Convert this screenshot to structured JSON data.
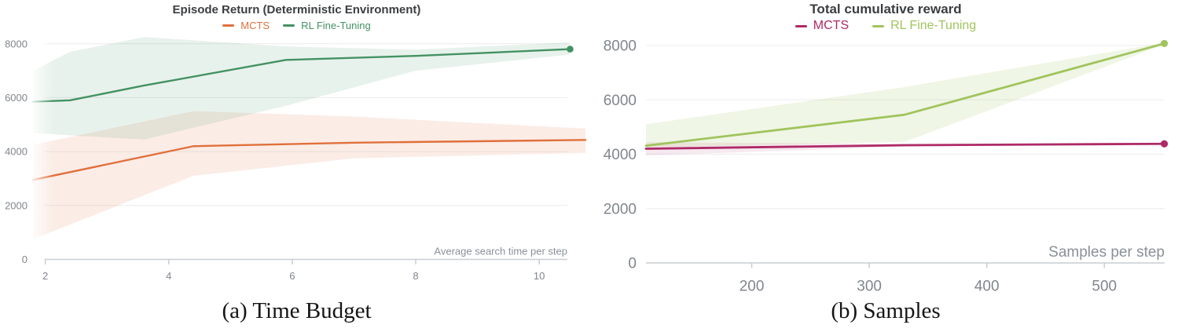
{
  "captions": [
    "(a) Time Budget",
    "(b) Samples"
  ],
  "chart_data": [
    {
      "type": "line",
      "title": "Episode Return (Deterministic Environment)",
      "xlabel": "Average search time per step",
      "ylabel": "",
      "xlim": [
        1.75,
        10.8
      ],
      "ylim": [
        0,
        8400
      ],
      "x_ticks": [
        2,
        4,
        6,
        8,
        10
      ],
      "y_ticks": [
        0,
        2000,
        4000,
        6000,
        8000
      ],
      "grid": true,
      "legend_position": "top-center",
      "edge_fade": true,
      "series": [
        {
          "name": "MCTS",
          "color": "#E0703C",
          "band_color": "rgba(224,112,60,0.13)",
          "x": [
            1.8,
            4.4,
            7.0,
            10.75
          ],
          "y": [
            2950,
            4200,
            4330,
            4430
          ],
          "band_upper": [
            4250,
            5500,
            5300,
            4850
          ],
          "band_lower": [
            750,
            3100,
            3750,
            3950
          ],
          "end_marker": false
        },
        {
          "name": "RL Fine-Tuning",
          "color": "#449263",
          "band_color": "rgba(68,146,99,0.12)",
          "x": [
            1.8,
            2.4,
            3.6,
            5.9,
            8.0,
            10.5
          ],
          "y": [
            5850,
            5900,
            6450,
            7400,
            7550,
            7800
          ],
          "band_upper": [
            7000,
            7700,
            8250,
            7900,
            7780,
            8050
          ],
          "band_lower": [
            4700,
            4600,
            4450,
            5700,
            7000,
            7600
          ],
          "end_marker": true
        }
      ]
    },
    {
      "type": "line",
      "title": "Total cumulative reward",
      "xlabel": "Samples per step",
      "ylabel": "",
      "xlim": [
        108,
        560
      ],
      "ylim": [
        0,
        8400
      ],
      "x_ticks": [
        200,
        300,
        400,
        500
      ],
      "y_ticks": [
        0,
        2000,
        4000,
        6000,
        8000
      ],
      "grid": true,
      "legend_position": "top-center",
      "edge_fade": false,
      "series": [
        {
          "name": "MCTS",
          "color": "#AE2A67",
          "band_color": "rgba(174,42,103,0.10)",
          "x": [
            110,
            330,
            551
          ],
          "y": [
            4200,
            4330,
            4380
          ],
          "band_upper": [
            4440,
            4380,
            4400
          ],
          "band_lower": [
            3950,
            4280,
            4360
          ],
          "end_marker": true
        },
        {
          "name": "RL Fine-Tuning",
          "color": "#A1C45E",
          "band_color": "rgba(161,196,94,0.16)",
          "x": [
            110,
            330,
            551
          ],
          "y": [
            4310,
            5450,
            8070
          ],
          "band_upper": [
            5100,
            6470,
            8100
          ],
          "band_lower": [
            4250,
            4450,
            8030
          ],
          "end_marker": true
        }
      ]
    }
  ]
}
